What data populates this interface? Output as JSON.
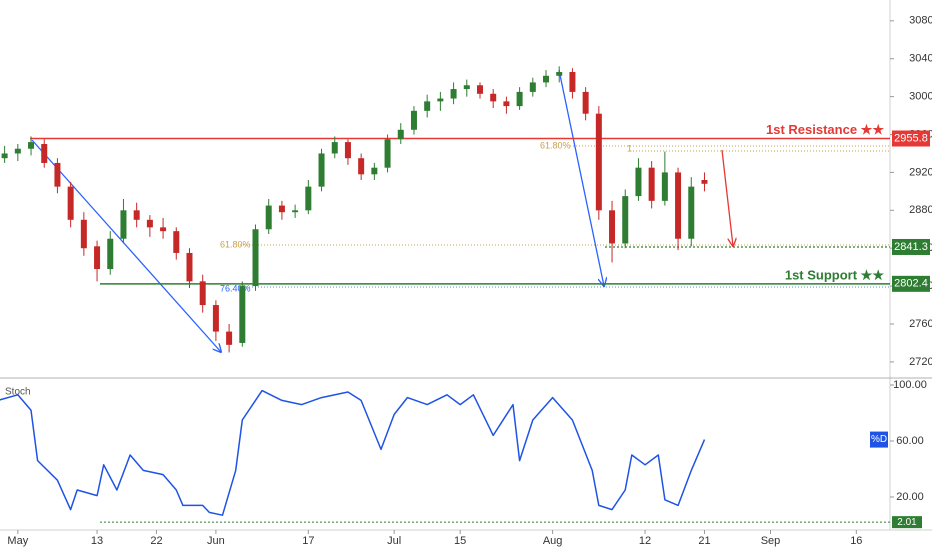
{
  "chart_data": [
    {
      "type": "candlestick",
      "up_color": "#2e7d32",
      "down_color": "#c62828",
      "x": [
        -2,
        0,
        2,
        4,
        6,
        8,
        10,
        12,
        14,
        16,
        18,
        20,
        22,
        24,
        26,
        28,
        30,
        32,
        34,
        36,
        38,
        40,
        42,
        44,
        46,
        48,
        50,
        52,
        54,
        56,
        58,
        60,
        62,
        64,
        66,
        68,
        70,
        72,
        74,
        76,
        78,
        80,
        82,
        84,
        86,
        88,
        90,
        92,
        94,
        96,
        98,
        100,
        102,
        104
      ],
      "open": [
        2935,
        2940,
        2945,
        2950,
        2930,
        2905,
        2870,
        2842,
        2818,
        2850,
        2880,
        2870,
        2862,
        2858,
        2835,
        2805,
        2780,
        2752,
        2740,
        2800,
        2860,
        2885,
        2878,
        2880,
        2905,
        2940,
        2952,
        2935,
        2918,
        2925,
        2955,
        2965,
        2985,
        2995,
        2998,
        3008,
        3012,
        3003,
        2995,
        2990,
        3005,
        3015,
        3022,
        3026,
        3005,
        2982,
        2880,
        2845,
        2895,
        2925,
        2890,
        2920,
        2850,
        2912
      ],
      "high": [
        2948,
        2950,
        2958,
        2955,
        2935,
        2910,
        2878,
        2848,
        2858,
        2892,
        2888,
        2875,
        2872,
        2862,
        2840,
        2812,
        2785,
        2760,
        2805,
        2865,
        2892,
        2890,
        2886,
        2912,
        2945,
        2958,
        2955,
        2940,
        2930,
        2960,
        2972,
        2990,
        3002,
        3005,
        3015,
        3018,
        3015,
        3008,
        3000,
        3010,
        3020,
        3028,
        3032,
        3030,
        3010,
        2990,
        2890,
        2902,
        2935,
        2932,
        2942,
        2925,
        2915,
        2920
      ],
      "low": [
        2930,
        2932,
        2938,
        2925,
        2898,
        2862,
        2832,
        2805,
        2812,
        2845,
        2862,
        2852,
        2850,
        2828,
        2798,
        2772,
        2742,
        2730,
        2736,
        2795,
        2855,
        2870,
        2872,
        2876,
        2900,
        2935,
        2928,
        2912,
        2912,
        2920,
        2950,
        2960,
        2978,
        2985,
        2992,
        3000,
        2998,
        2988,
        2982,
        2986,
        3000,
        3010,
        3015,
        2998,
        2975,
        2870,
        2825,
        2840,
        2890,
        2882,
        2885,
        2838,
        2842,
        2900
      ],
      "close": [
        2940,
        2945,
        2952,
        2930,
        2905,
        2870,
        2840,
        2818,
        2850,
        2880,
        2870,
        2862,
        2858,
        2835,
        2805,
        2780,
        2752,
        2738,
        2800,
        2860,
        2885,
        2878,
        2880,
        2905,
        2940,
        2952,
        2935,
        2918,
        2925,
        2955,
        2965,
        2985,
        2995,
        2998,
        3008,
        3012,
        3003,
        2995,
        2990,
        3005,
        3015,
        3022,
        3026,
        3005,
        2982,
        2880,
        2845,
        2895,
        2925,
        2890,
        2920,
        2850,
        2905,
        2908
      ],
      "xlim": [
        -2.7,
        132.1
      ],
      "ylim": [
        2703,
        3102
      ],
      "yticks": [
        {
          "value": 2720,
          "label": "2720.0"
        },
        {
          "value": 2760,
          "label": "2760.0"
        },
        {
          "value": 2800,
          "label": "2800.0"
        },
        {
          "value": 2840,
          "label": "2840.0"
        },
        {
          "value": 2880,
          "label": "2880.0"
        },
        {
          "value": 2920,
          "label": "2920.0"
        },
        {
          "value": 2960,
          "label": "2960.0"
        },
        {
          "value": 3000,
          "label": "3000.0"
        },
        {
          "value": 3040,
          "label": "3040.0"
        },
        {
          "value": 3080,
          "label": "3080.0"
        }
      ],
      "levels": [
        {
          "value": 2955.8,
          "label": "1st Resistance ★★",
          "color": "#e53935"
        },
        {
          "value": 2841.3,
          "color": "#2e7d32"
        },
        {
          "value": 2802.4,
          "label": "1st Support ★★",
          "color": "#2e7d32"
        }
      ],
      "annotations": [
        "61.80%",
        "61.80%",
        "76.40%",
        "1"
      ]
    },
    {
      "type": "line",
      "label": "Stoch",
      "current_label": "%D",
      "level": 2.01,
      "color": "#1e53e5",
      "x": [
        -3,
        0,
        2,
        3,
        6,
        8,
        9,
        12,
        13,
        15,
        17,
        19,
        22,
        24,
        25,
        28,
        29,
        31,
        33,
        34,
        37,
        40,
        43,
        46,
        50,
        52,
        55,
        57,
        59,
        62,
        65,
        67,
        69,
        72,
        75,
        76,
        78,
        81,
        84,
        87,
        88,
        90,
        92,
        93,
        95,
        97,
        98,
        100,
        102,
        104
      ],
      "values": [
        89,
        93,
        82,
        46,
        32,
        11,
        25,
        21,
        43,
        25,
        50,
        39,
        36,
        25,
        14,
        14,
        9,
        7,
        39,
        75,
        96,
        89,
        86,
        91,
        95,
        89,
        54,
        79,
        91,
        86,
        93,
        86,
        93,
        64,
        86,
        46,
        75,
        91,
        75,
        39,
        14,
        11,
        25,
        50,
        43,
        50,
        18,
        14,
        39,
        61
      ],
      "xlim": [
        -2.7,
        132.1
      ],
      "ylim": [
        -3.6,
        105
      ],
      "yticks": [
        {
          "value": 20,
          "label": "20.00"
        },
        {
          "value": 60,
          "label": "60.00"
        },
        {
          "value": 100,
          "label": "100.00"
        }
      ],
      "xticks": [
        {
          "value": 0,
          "label": "May"
        },
        {
          "value": 12,
          "label": "13"
        },
        {
          "value": 21,
          "label": "22"
        },
        {
          "value": 30,
          "label": "Jun"
        },
        {
          "value": 44,
          "label": "17"
        },
        {
          "value": 57,
          "label": "Jul"
        },
        {
          "value": 67,
          "label": "15"
        },
        {
          "value": 81,
          "label": "Aug"
        },
        {
          "value": 95,
          "label": "12"
        },
        {
          "value": 104,
          "label": "21"
        },
        {
          "value": 114,
          "label": "Sep"
        },
        {
          "value": 127,
          "label": "16"
        }
      ]
    }
  ]
}
